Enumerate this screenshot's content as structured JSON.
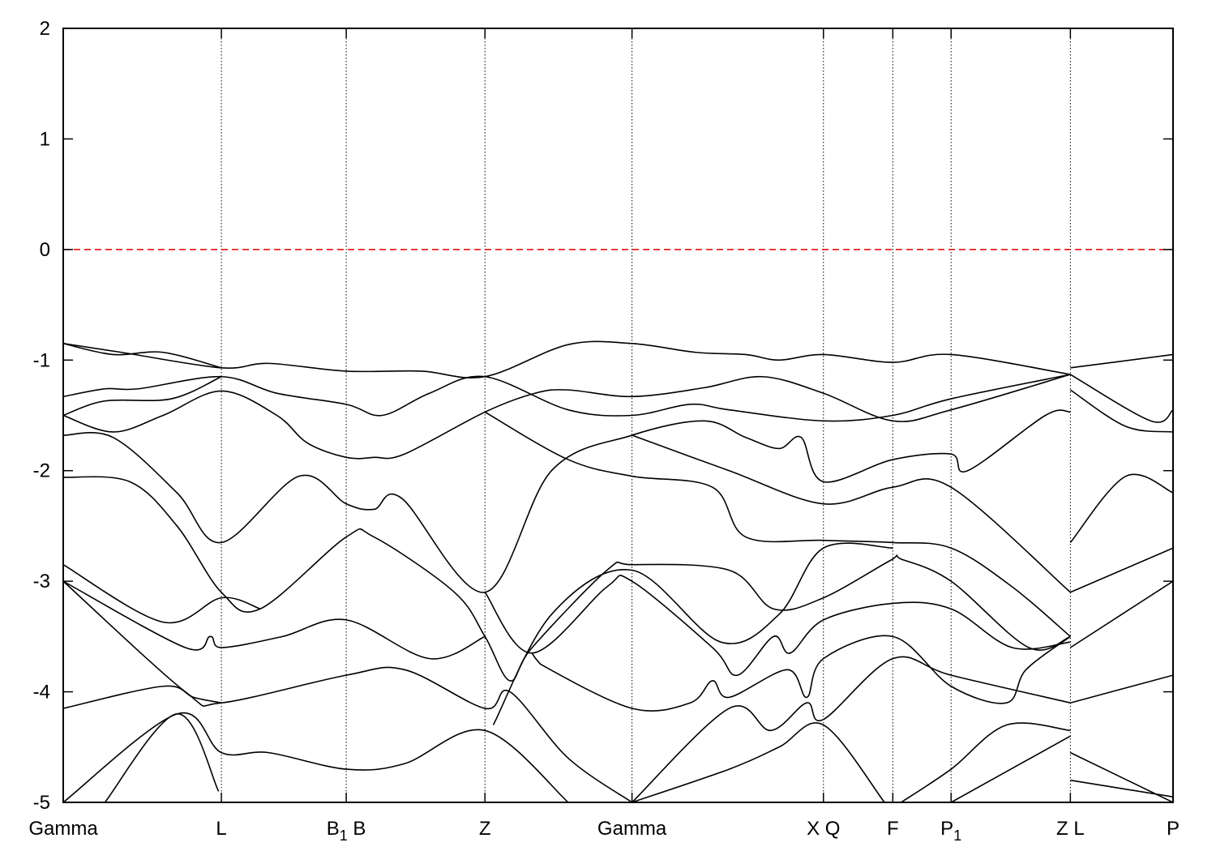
{
  "chart_data": {
    "type": "line",
    "title": "",
    "xlabel": "",
    "ylabel": "",
    "ylim": [
      -5,
      2
    ],
    "xlim": [
      0,
      4.0
    ],
    "yticks": [
      -5,
      -4,
      -3,
      -2,
      -1,
      0,
      1,
      2
    ],
    "xticks": [
      {
        "k": 0,
        "label": "Gamma"
      },
      {
        "k": 0.57,
        "label": "L"
      },
      {
        "k": 1.02,
        "label": "B",
        "sub": "1",
        "after": " B"
      },
      {
        "k": 1.52,
        "label": "Z"
      },
      {
        "k": 2.05,
        "label": "Gamma"
      },
      {
        "k": 2.74,
        "label": "X  Q"
      },
      {
        "k": 2.99,
        "label": "F"
      },
      {
        "k": 3.2,
        "label": "P",
        "sub": "1"
      },
      {
        "k": 3.63,
        "label": "Z  L"
      },
      {
        "k": 4.0,
        "label": "P"
      }
    ],
    "fermi_level": 0,
    "grid": "vertical dotted lines at high-symmetry points",
    "colors": {
      "bands": "#000000",
      "fermi": "#e00000"
    },
    "bands": [
      [
        [
          0,
          -0.85
        ],
        [
          0.21,
          -0.93
        ],
        [
          0.57,
          -1.07
        ],
        [
          0.74,
          -1.03
        ],
        [
          1.02,
          -1.1
        ],
        [
          1.29,
          -1.1
        ],
        [
          1.52,
          -1.15
        ],
        [
          1.82,
          -0.86
        ],
        [
          2.05,
          -0.85
        ],
        [
          2.28,
          -0.93
        ],
        [
          2.46,
          -0.95
        ],
        [
          2.58,
          -1.0
        ],
        [
          2.74,
          -0.95
        ],
        [
          2.99,
          -1.02
        ],
        [
          3.2,
          -0.95
        ],
        [
          3.63,
          -1.13
        ]
      ],
      [
        [
          0,
          -0.85
        ],
        [
          0.18,
          -0.95
        ],
        [
          0.36,
          -0.93
        ],
        [
          0.57,
          -1.07
        ]
      ],
      [
        [
          0,
          -1.33
        ],
        [
          0.15,
          -1.26
        ],
        [
          0.27,
          -1.26
        ],
        [
          0.57,
          -1.15
        ],
        [
          0.77,
          -1.3
        ],
        [
          1.02,
          -1.4
        ],
        [
          1.15,
          -1.5
        ],
        [
          1.32,
          -1.3
        ],
        [
          1.52,
          -1.15
        ],
        [
          1.82,
          -1.45
        ],
        [
          2.05,
          -1.5
        ],
        [
          2.26,
          -1.4
        ],
        [
          2.4,
          -1.45
        ],
        [
          2.74,
          -1.55
        ],
        [
          2.99,
          -1.5
        ],
        [
          3.2,
          -1.35
        ],
        [
          3.63,
          -1.13
        ]
      ],
      [
        [
          0,
          -1.5
        ],
        [
          0.15,
          -1.37
        ],
        [
          0.39,
          -1.35
        ],
        [
          0.57,
          -1.15
        ]
      ],
      [
        [
          0,
          -1.5
        ],
        [
          0.18,
          -1.65
        ],
        [
          0.36,
          -1.5
        ],
        [
          0.57,
          -1.28
        ],
        [
          0.77,
          -1.5
        ],
        [
          0.88,
          -1.75
        ],
        [
          1.02,
          -1.88
        ],
        [
          1.12,
          -1.88
        ],
        [
          1.23,
          -1.85
        ],
        [
          1.52,
          -1.47
        ],
        [
          1.7,
          -1.3
        ],
        [
          1.82,
          -1.27
        ],
        [
          2.05,
          -1.33
        ],
        [
          2.31,
          -1.25
        ],
        [
          2.52,
          -1.15
        ],
        [
          2.74,
          -1.3
        ],
        [
          2.99,
          -1.55
        ],
        [
          3.2,
          -1.45
        ],
        [
          3.63,
          -1.13
        ]
      ],
      [
        [
          0,
          -1.68
        ],
        [
          0.18,
          -1.7
        ],
        [
          0.41,
          -2.2
        ],
        [
          0.57,
          -2.65
        ],
        [
          0.85,
          -2.05
        ],
        [
          1.02,
          -2.3
        ],
        [
          1.12,
          -2.35
        ],
        [
          1.22,
          -2.25
        ],
        [
          1.52,
          -3.1
        ],
        [
          1.76,
          -2.0
        ],
        [
          2.05,
          -1.68
        ],
        [
          2.31,
          -1.55
        ],
        [
          2.46,
          -1.7
        ],
        [
          2.58,
          -1.8
        ],
        [
          2.66,
          -1.7
        ],
        [
          2.74,
          -2.1
        ],
        [
          2.99,
          -1.9
        ],
        [
          3.2,
          -1.85
        ],
        [
          3.26,
          -2.0
        ],
        [
          3.54,
          -1.5
        ],
        [
          3.63,
          -1.47
        ]
      ],
      [
        [
          0,
          -2.06
        ],
        [
          0.24,
          -2.1
        ],
        [
          0.41,
          -2.5
        ],
        [
          0.57,
          -3.1
        ],
        [
          0.71,
          -3.25
        ],
        [
          1.02,
          -2.6
        ],
        [
          1.12,
          -2.6
        ],
        [
          1.41,
          -3.1
        ],
        [
          1.52,
          -3.5
        ],
        [
          1.61,
          -3.9
        ],
        [
          1.69,
          -3.6
        ],
        [
          1.96,
          -2.9
        ],
        [
          2.05,
          -2.85
        ],
        [
          2.4,
          -2.9
        ],
        [
          2.56,
          -3.25
        ],
        [
          2.74,
          -3.15
        ],
        [
          2.99,
          -2.8
        ],
        [
          3.02,
          -2.8
        ],
        [
          3.2,
          -3.0
        ],
        [
          3.48,
          -3.6
        ],
        [
          3.63,
          -3.5
        ]
      ],
      [
        [
          1.52,
          -1.47
        ],
        [
          1.82,
          -1.9
        ],
        [
          2.05,
          -2.05
        ],
        [
          2.34,
          -2.15
        ],
        [
          2.46,
          -2.6
        ],
        [
          2.74,
          -2.63
        ],
        [
          2.99,
          -2.65
        ],
        [
          3.2,
          -2.7
        ],
        [
          3.42,
          -3.05
        ],
        [
          3.63,
          -3.5
        ]
      ],
      [
        [
          2.05,
          -1.68
        ],
        [
          2.4,
          -2.0
        ],
        [
          2.74,
          -2.3
        ],
        [
          2.99,
          -2.15
        ],
        [
          3.2,
          -2.15
        ],
        [
          3.63,
          -3.1
        ]
      ],
      [
        [
          0,
          -2.85
        ],
        [
          0.36,
          -3.37
        ],
        [
          0.57,
          -3.15
        ],
        [
          0.71,
          -3.25
        ]
      ],
      [
        [
          0,
          -3.0
        ],
        [
          0.44,
          -3.6
        ],
        [
          0.53,
          -3.5
        ],
        [
          0.57,
          -3.6
        ],
        [
          0.79,
          -3.5
        ],
        [
          1.02,
          -3.35
        ],
        [
          1.32,
          -3.7
        ],
        [
          1.52,
          -3.5
        ]
      ],
      [
        [
          0,
          -3.0
        ],
        [
          0.44,
          -4.0
        ],
        [
          0.57,
          -4.1
        ],
        [
          1.02,
          -3.85
        ],
        [
          1.23,
          -3.8
        ],
        [
          1.52,
          -4.15
        ],
        [
          1.61,
          -4.0
        ],
        [
          1.82,
          -4.6
        ],
        [
          2.05,
          -5.0
        ]
      ],
      [
        [
          0,
          -4.15
        ],
        [
          0.36,
          -3.95
        ],
        [
          0.47,
          -4.05
        ],
        [
          0.57,
          -4.1
        ]
      ],
      [
        [
          0,
          -5.0
        ],
        [
          0.41,
          -4.2
        ],
        [
          0.57,
          -4.55
        ],
        [
          0.74,
          -4.55
        ],
        [
          1.02,
          -4.7
        ],
        [
          1.23,
          -4.65
        ],
        [
          1.52,
          -4.35
        ],
        [
          1.82,
          -5.0
        ]
      ],
      [
        [
          0.15,
          -5.0
        ],
        [
          0.41,
          -4.2
        ],
        [
          0.56,
          -4.9
        ]
      ],
      [
        [
          1.52,
          -3.1
        ],
        [
          1.69,
          -3.65
        ],
        [
          1.96,
          -3.05
        ],
        [
          2.05,
          -3.0
        ],
        [
          2.34,
          -3.6
        ],
        [
          2.43,
          -3.85
        ],
        [
          2.56,
          -3.5
        ],
        [
          2.62,
          -3.65
        ],
        [
          2.74,
          -3.35
        ],
        [
          2.99,
          -3.2
        ],
        [
          3.2,
          -3.25
        ],
        [
          3.42,
          -3.6
        ],
        [
          3.63,
          -3.55
        ]
      ],
      [
        [
          1.55,
          -4.3
        ],
        [
          1.76,
          -3.3
        ],
        [
          2.05,
          -2.9
        ],
        [
          2.37,
          -3.55
        ],
        [
          2.58,
          -3.3
        ],
        [
          2.74,
          -2.7
        ],
        [
          2.99,
          -2.7
        ]
      ],
      [
        [
          1.69,
          -3.65
        ],
        [
          1.72,
          -3.75
        ],
        [
          2.05,
          -4.15
        ],
        [
          2.26,
          -4.1
        ],
        [
          2.34,
          -3.9
        ],
        [
          2.4,
          -4.05
        ],
        [
          2.61,
          -3.8
        ],
        [
          2.68,
          -4.05
        ],
        [
          2.74,
          -3.7
        ],
        [
          2.99,
          -3.5
        ],
        [
          3.2,
          -3.95
        ],
        [
          3.4,
          -4.1
        ],
        [
          3.47,
          -3.8
        ],
        [
          3.63,
          -3.5
        ]
      ],
      [
        [
          2.05,
          -5.0
        ],
        [
          2.4,
          -4.15
        ],
        [
          2.55,
          -4.35
        ],
        [
          2.68,
          -4.1
        ],
        [
          2.74,
          -4.25
        ],
        [
          2.99,
          -3.7
        ],
        [
          3.2,
          -3.85
        ],
        [
          3.63,
          -4.1
        ]
      ],
      [
        [
          2.05,
          -5.0
        ],
        [
          2.4,
          -4.7
        ],
        [
          2.58,
          -4.5
        ],
        [
          2.74,
          -4.3
        ],
        [
          2.96,
          -5.0
        ]
      ],
      [
        [
          3.02,
          -5.0
        ],
        [
          3.2,
          -4.7
        ],
        [
          3.4,
          -4.3
        ],
        [
          3.63,
          -4.35
        ]
      ],
      [
        [
          3.2,
          -5.0
        ],
        [
          3.63,
          -4.4
        ]
      ],
      [
        [
          3.63,
          -1.07
        ],
        [
          4.0,
          -0.95
        ]
      ],
      [
        [
          3.63,
          -1.13
        ],
        [
          3.92,
          -1.55
        ],
        [
          4.0,
          -1.45
        ]
      ],
      [
        [
          3.63,
          -1.27
        ],
        [
          3.83,
          -1.6
        ],
        [
          4.0,
          -1.65
        ]
      ],
      [
        [
          3.63,
          -2.65
        ],
        [
          3.83,
          -2.05
        ],
        [
          4.0,
          -2.2
        ]
      ],
      [
        [
          3.63,
          -3.1
        ],
        [
          4.0,
          -2.7
        ]
      ],
      [
        [
          3.63,
          -3.6
        ],
        [
          4.0,
          -3.0
        ]
      ],
      [
        [
          3.63,
          -4.1
        ],
        [
          4.0,
          -3.85
        ]
      ],
      [
        [
          3.63,
          -4.55
        ],
        [
          4.0,
          -5.0
        ]
      ],
      [
        [
          3.63,
          -4.8
        ],
        [
          4.0,
          -4.95
        ]
      ]
    ]
  }
}
